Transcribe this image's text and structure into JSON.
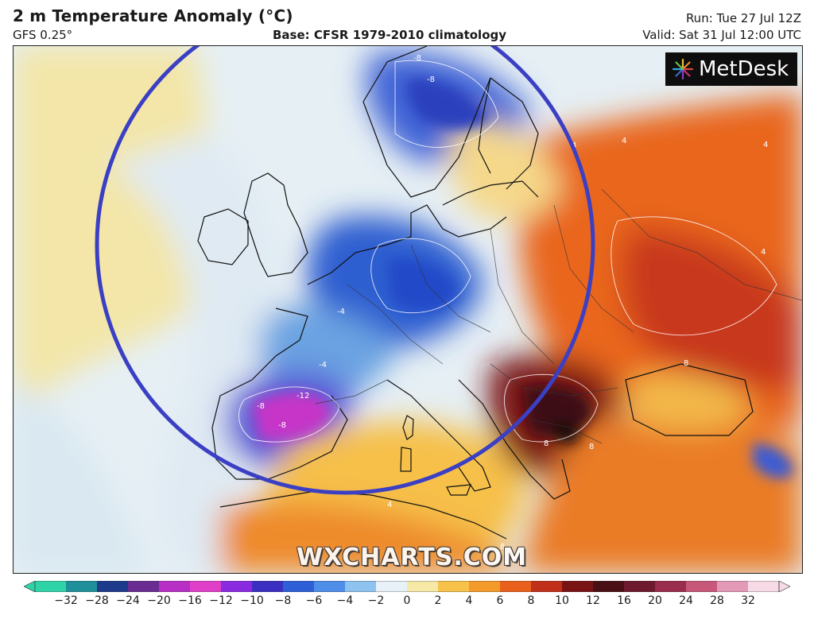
{
  "header": {
    "title": "2 m Temperature Anomaly (°C)",
    "model": "GFS 0.25°",
    "base": "Base: CFSR 1979-2010 climatology",
    "run": "Run: Tue 27 Jul 12Z",
    "valid": "Valid: Sat 31 Jul 12:00 UTC"
  },
  "logo": {
    "text": "MetDesk",
    "icon": "starburst-logo-icon"
  },
  "watermark": "WXCHARTS.COM",
  "colorbar": {
    "ticks": [
      "−32",
      "−28",
      "−24",
      "−20",
      "−16",
      "−12",
      "−10",
      "−8",
      "−6",
      "−4",
      "−2",
      "0",
      "2",
      "4",
      "6",
      "8",
      "10",
      "12",
      "16",
      "20",
      "24",
      "28",
      "32"
    ],
    "colors": [
      "#2fd3a8",
      "#1f8f9a",
      "#1e3a8a",
      "#6a2c91",
      "#b72fc4",
      "#e040c8",
      "#8a2be2",
      "#3a2fc0",
      "#2e5fd6",
      "#4f8ee8",
      "#8ec3ef",
      "#e8f1f7",
      "#f6e9a8",
      "#f7c24a",
      "#f49a2a",
      "#e8601c",
      "#c0301a",
      "#7a1414",
      "#4a1016",
      "#6e1a2e",
      "#9a2c4e",
      "#c8587a",
      "#e39ab6",
      "#f6dbe6"
    ]
  },
  "map": {
    "annotation": "blue circle highlighting western and central Europe",
    "colors": {
      "ocean_warm": "#f3e9b6",
      "ocean_neutral": "#e6eff4",
      "cool": "#8bbde6",
      "cold": "#2f5fd0",
      "very_cold": "#c634c8",
      "warm": "#f6c04a",
      "hot": "#ec7a23",
      "very_hot": "#c6381c",
      "extreme": "#5a1418",
      "circle": "#3b3fc4"
    },
    "contour_labels": [
      "-8",
      "-8",
      "4",
      "4",
      "4",
      "4",
      "-4",
      "-4",
      "-8",
      "-12",
      "-8",
      "4",
      "8",
      "8",
      "8",
      "8"
    ]
  }
}
